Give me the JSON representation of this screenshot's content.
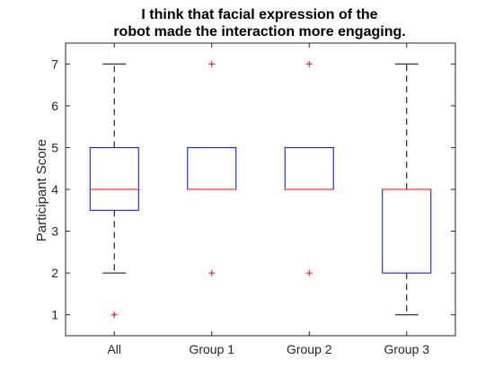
{
  "chart_data": {
    "type": "box",
    "title": [
      "I think that facial expression of the",
      "robot made the interaction more engaging."
    ],
    "xlabel": "",
    "ylabel": "Participant Score",
    "ylim": [
      0.5,
      7.5
    ],
    "yticks": [
      1,
      2,
      3,
      4,
      5,
      6,
      7
    ],
    "grid": false,
    "categories": [
      "All",
      "Group 1",
      "Group 2",
      "Group 3"
    ],
    "boxes": [
      {
        "category": "All",
        "q1": 3.5,
        "median": 4,
        "q3": 5,
        "whisker_low": 2,
        "whisker_high": 7,
        "outliers": [
          1
        ]
      },
      {
        "category": "Group 1",
        "q1": 4,
        "median": 4,
        "q3": 5,
        "whisker_low": 4,
        "whisker_high": 5,
        "outliers": [
          7,
          2
        ]
      },
      {
        "category": "Group 2",
        "q1": 4,
        "median": 4,
        "q3": 5,
        "whisker_low": 4,
        "whisker_high": 5,
        "outliers": [
          7,
          2
        ]
      },
      {
        "category": "Group 3",
        "q1": 2,
        "median": 4,
        "q3": 4,
        "whisker_low": 1,
        "whisker_high": 7,
        "outliers": []
      }
    ],
    "colors": {
      "box": "#0000ff",
      "median": "#ff0000",
      "whisker": "#000000",
      "outlier": "#ff0000",
      "axis": "#262626"
    }
  }
}
